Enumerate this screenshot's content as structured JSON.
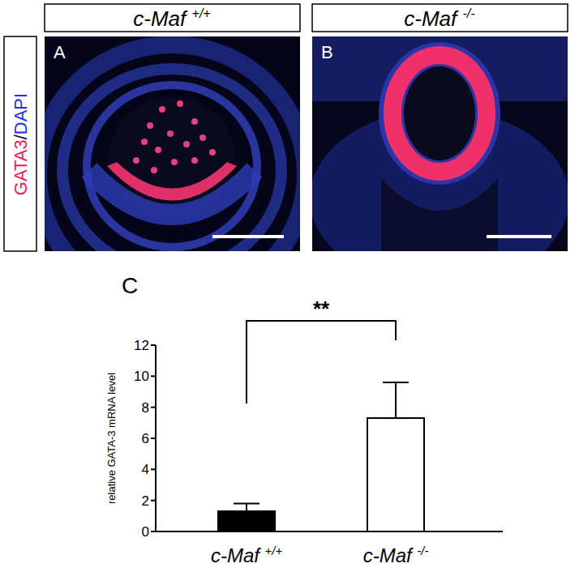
{
  "figure": {
    "stain_label": "GATA3/DAPI",
    "panels": [
      {
        "label": "A",
        "genotype": "c-Maf +/+"
      },
      {
        "label": "B",
        "genotype": "c-Maf -/-"
      },
      {
        "label": "C"
      }
    ]
  },
  "chart_data": {
    "type": "bar",
    "categories": [
      "c-Maf +/+",
      "c-Maf -/-"
    ],
    "values": [
      1.3,
      7.3
    ],
    "errors": [
      0.5,
      2.3
    ],
    "colors": [
      "#000000",
      "#ffffff"
    ],
    "ylabel": "relative GATA-3 mRNA level",
    "ylim": [
      0,
      12
    ],
    "yticks": [
      0,
      2,
      4,
      6,
      8,
      10,
      12
    ],
    "annotations": [
      "**"
    ],
    "grid": false
  }
}
